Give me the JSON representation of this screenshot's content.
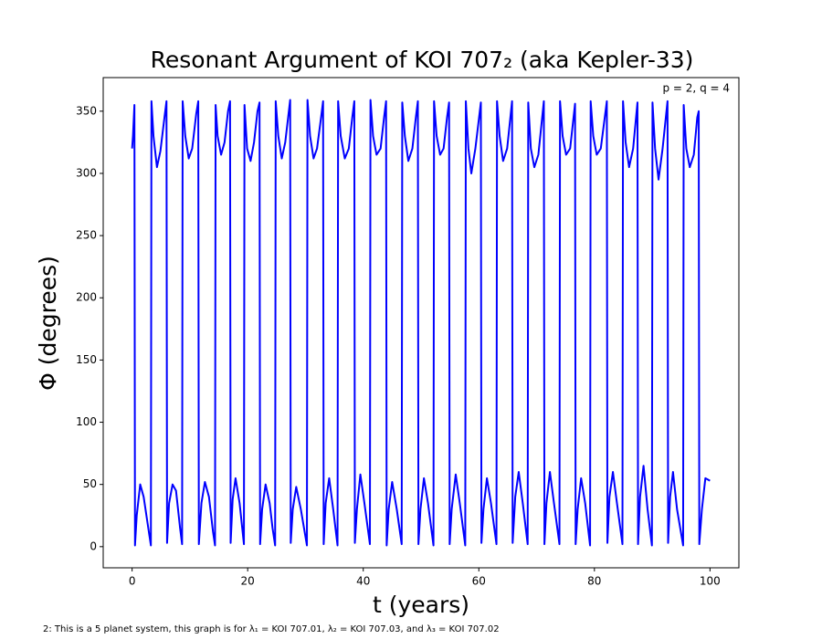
{
  "chart_data": {
    "type": "line",
    "title": "Resonant Argument of KOI 707₂ (aka Kepler-33)",
    "x_label": "t (years)",
    "y_label": "Φ (degrees)",
    "annotation": "p = 2, q = 4",
    "footnote": "2: This is a 5 planet system, this graph is for λ₁ = KOI 707.01, λ₂ = KOI 707.03, and λ₃ = KOI 707.02",
    "xlim": [
      -5,
      105
    ],
    "xticks": [
      0,
      20,
      40,
      60,
      80,
      100
    ],
    "ylim": [
      -17,
      377
    ],
    "yticks": [
      0,
      50,
      100,
      150,
      200,
      250,
      300,
      350
    ],
    "grid": false,
    "x": [
      0,
      0.15,
      0.4,
      0.5,
      0.8,
      1.4,
      2.0,
      2.8,
      3.25,
      3.35,
      3.7,
      4.3,
      4.9,
      5.6,
      5.95,
      6.05,
      6.4,
      7.0,
      7.6,
      8.3,
      8.65,
      8.75,
      9.2,
      9.8,
      10.4,
      11.1,
      11.45,
      11.55,
      12,
      12.6,
      13.3,
      14,
      14.35,
      14.45,
      14.8,
      15.4,
      16,
      16.6,
      16.95,
      17.05,
      17.4,
      17.9,
      18.6,
      19.35,
      19.45,
      19.9,
      20.5,
      21.1,
      21.7,
      22.05,
      22.15,
      22.5,
      23.1,
      23.8,
      24.3,
      24.75,
      24.85,
      25.3,
      25.9,
      26.5,
      27.35,
      27.45,
      27.8,
      28.4,
      29.2,
      30.25,
      30.35,
      30.8,
      31.4,
      32,
      32.7,
      33.05,
      33.15,
      33.5,
      34.1,
      34.8,
      35.55,
      35.65,
      36.1,
      36.8,
      37.5,
      38.1,
      38.45,
      38.55,
      38.9,
      39.5,
      40.2,
      41.15,
      41.25,
      41.7,
      42.3,
      43,
      43.6,
      43.95,
      44.05,
      44.4,
      45,
      45.8,
      46.65,
      46.75,
      47.2,
      47.8,
      48.5,
      49.1,
      49.45,
      49.55,
      49.9,
      50.5,
      51.2,
      52.15,
      52.25,
      52.7,
      53.3,
      53.9,
      54.5,
      54.85,
      54.95,
      55.3,
      56,
      56.7,
      57.65,
      57.75,
      58.2,
      58.7,
      59.4,
      60.35,
      60.45,
      60.8,
      61.4,
      62.1,
      63.05,
      63.15,
      63.6,
      64.2,
      64.9,
      65.75,
      65.85,
      66.3,
      66.9,
      67.6,
      68.45,
      68.55,
      69,
      69.6,
      70.3,
      71.25,
      71.35,
      71.7,
      72.3,
      73,
      73.95,
      74.05,
      74.5,
      75.1,
      75.8,
      76.65,
      76.75,
      77.1,
      77.7,
      78.4,
      79.25,
      79.35,
      79.8,
      80.4,
      81.1,
      82.15,
      82.25,
      82.6,
      83.2,
      83.9,
      84.85,
      84.95,
      85.4,
      86,
      86.7,
      87.45,
      87.55,
      87.9,
      88.5,
      89.2,
      89.95,
      90.05,
      90.5,
      91.1,
      91.8,
      92.65,
      92.75,
      93.1,
      93.6,
      94.3,
      95.35,
      95.45,
      95.9,
      96.5,
      97.2,
      97.8,
      98.05,
      98.15,
      98.6,
      99.2,
      100
    ],
    "series": [
      {
        "color": "#0000ff",
        "values": [
          320,
          330,
          355,
          1,
          25,
          50,
          40,
          15,
          1,
          358,
          330,
          305,
          318,
          345,
          358,
          3,
          35,
          50,
          45,
          15,
          2,
          358,
          330,
          312,
          320,
          348,
          358,
          2,
          35,
          52,
          40,
          12,
          1,
          355,
          330,
          315,
          325,
          350,
          358,
          3,
          38,
          55,
          35,
          2,
          355,
          320,
          310,
          325,
          350,
          357,
          2,
          30,
          50,
          35,
          15,
          1,
          358,
          330,
          312,
          325,
          359,
          3,
          30,
          48,
          30,
          1,
          359,
          330,
          312,
          320,
          345,
          358,
          2,
          35,
          55,
          30,
          1,
          358,
          330,
          312,
          320,
          345,
          358,
          3,
          30,
          58,
          35,
          2,
          359,
          330,
          315,
          320,
          345,
          358,
          1,
          30,
          52,
          30,
          2,
          357,
          330,
          310,
          320,
          345,
          358,
          2,
          30,
          55,
          35,
          1,
          358,
          330,
          315,
          320,
          345,
          357,
          2,
          30,
          58,
          35,
          1,
          358,
          320,
          300,
          320,
          357,
          3,
          30,
          55,
          35,
          2,
          358,
          330,
          310,
          320,
          358,
          3,
          40,
          60,
          35,
          2,
          357,
          320,
          305,
          315,
          358,
          2,
          35,
          60,
          35,
          2,
          358,
          330,
          315,
          320,
          356,
          2,
          30,
          55,
          35,
          1,
          358,
          330,
          315,
          320,
          358,
          3,
          40,
          60,
          35,
          2,
          358,
          325,
          305,
          320,
          357,
          2,
          40,
          65,
          30,
          1,
          357,
          320,
          295,
          320,
          358,
          3,
          40,
          60,
          30,
          1,
          355,
          320,
          305,
          315,
          345,
          350,
          2,
          30,
          55,
          53
        ]
      }
    ]
  }
}
